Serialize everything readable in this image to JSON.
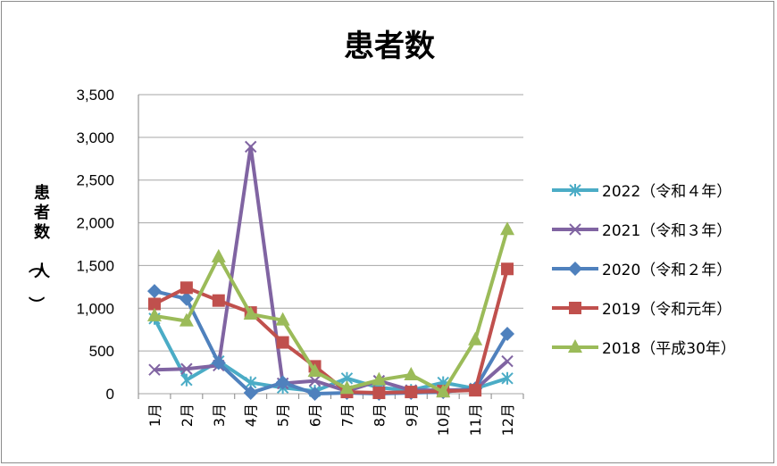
{
  "chart_data": {
    "type": "line",
    "title": "患者数",
    "ylabel": "患者数（人）",
    "xlabel": "",
    "categories": [
      "1月",
      "2月",
      "3月",
      "4月",
      "5月",
      "6月",
      "7月",
      "8月",
      "9月",
      "10月",
      "11月",
      "12月"
    ],
    "ylim": [
      0,
      3500
    ],
    "yticks": [
      0,
      500,
      1000,
      1500,
      2000,
      2500,
      3000,
      3500
    ],
    "ytick_labels": [
      "0",
      "500",
      "1,000",
      "1,500",
      "2,000",
      "2,500",
      "3,000",
      "3,500"
    ],
    "grid": true,
    "legend_position": "right",
    "series": [
      {
        "name": "2022（令和４年）",
        "color": "#4bacc6",
        "marker": "asterisk",
        "values": [
          880,
          160,
          380,
          130,
          70,
          30,
          180,
          70,
          40,
          130,
          60,
          180
        ]
      },
      {
        "name": "2021（令和３年）",
        "color": "#8064a2",
        "marker": "x",
        "values": [
          280,
          290,
          330,
          2890,
          120,
          150,
          30,
          150,
          40,
          40,
          50,
          380
        ]
      },
      {
        "name": "2020（令和２年）",
        "color": "#4f81bd",
        "marker": "diamond",
        "values": [
          1200,
          1110,
          360,
          10,
          130,
          0,
          10,
          0,
          10,
          20,
          60,
          700
        ]
      },
      {
        "name": "2019（令和元年）",
        "color": "#c0504d",
        "marker": "square",
        "values": [
          1050,
          1240,
          1090,
          950,
          600,
          320,
          20,
          10,
          20,
          30,
          40,
          1460
        ]
      },
      {
        "name": "2018（平成30年）",
        "color": "#9bbb59",
        "marker": "triangle",
        "values": [
          910,
          850,
          1600,
          930,
          860,
          260,
          60,
          160,
          220,
          20,
          630,
          1920
        ]
      }
    ]
  }
}
